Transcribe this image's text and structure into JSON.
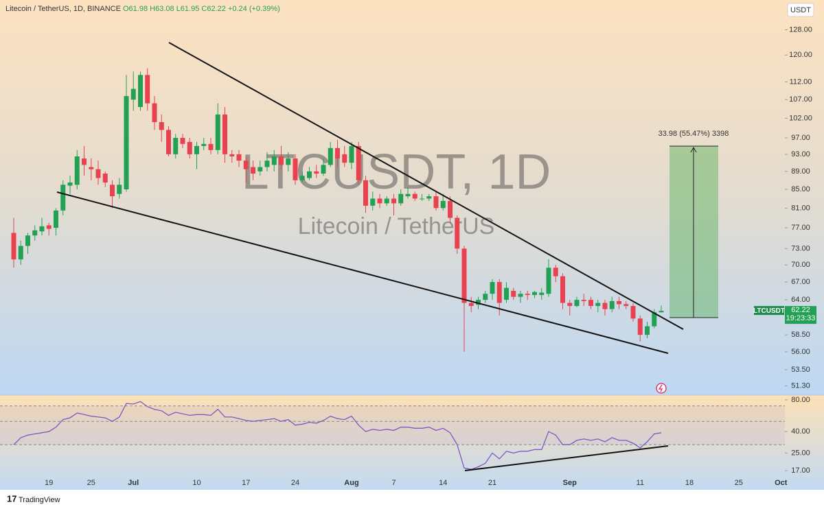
{
  "chart_data": {
    "type": "candlestick",
    "title": "Litecoin / TetherUS, 1D, BINANCE",
    "legend_values": [
      "O61.98",
      "H63.08",
      "L61.95",
      "C62.22",
      "+0.24 (+0.39%)"
    ],
    "watermark": [
      "LTCUSDT, 1D",
      "Litecoin / TetherUS"
    ],
    "currency": "USDT",
    "symbol": "LTCUSDT",
    "last_price": {
      "value": 62.22,
      "label": "62.22"
    },
    "countdown": "19:23:33",
    "measure_label": "33.98 (55.47%) 3398",
    "brand": "TradingView",
    "up_color": "#22a053",
    "down_color": "#e8414f",
    "log": true,
    "ylim": [
      50.2,
      138.2
    ],
    "yticks": [
      {
        "value": 128,
        "label": "128.00"
      },
      {
        "value": 120,
        "label": "120.00"
      },
      {
        "value": 112,
        "label": "112.00"
      },
      {
        "value": 107,
        "label": "107.00"
      },
      {
        "value": 102,
        "label": "102.00"
      },
      {
        "value": 97,
        "label": "97.00"
      },
      {
        "value": 93,
        "label": "93.00"
      },
      {
        "value": 89,
        "label": "89.00"
      },
      {
        "value": 85,
        "label": "85.00"
      },
      {
        "value": 81,
        "label": "81.00"
      },
      {
        "value": 77,
        "label": "77.00"
      },
      {
        "value": 73,
        "label": "73.00"
      },
      {
        "value": 70,
        "label": "70.00"
      },
      {
        "value": 67,
        "label": "67.00"
      },
      {
        "value": 64,
        "label": "64.00"
      },
      {
        "value": 58.5,
        "label": "58.50"
      },
      {
        "value": 56,
        "label": "56.00"
      },
      {
        "value": 53.5,
        "label": "53.50"
      },
      {
        "value": 51.3,
        "label": "51.30"
      }
    ],
    "categories": [
      null,
      null,
      null,
      null,
      null,
      "19",
      null,
      null,
      null,
      null,
      null,
      "25",
      null,
      null,
      null,
      null,
      null,
      "Jul",
      null,
      null,
      null,
      null,
      null,
      null,
      null,
      null,
      "10",
      null,
      null,
      null,
      null,
      null,
      null,
      "17",
      null,
      null,
      null,
      null,
      null,
      null,
      "24",
      null,
      null,
      null,
      null,
      null,
      null,
      null,
      "Aug",
      null,
      null,
      null,
      null,
      null,
      "7",
      null,
      null,
      null,
      null,
      null,
      null,
      "14",
      null,
      null,
      null,
      null,
      null,
      null,
      "21",
      null,
      null,
      null,
      null,
      null,
      null,
      null,
      null,
      null,
      null,
      "Sep",
      null,
      null,
      null,
      null,
      null,
      null,
      null,
      null,
      null,
      "11",
      null,
      null,
      null,
      null,
      null,
      null,
      "18",
      null,
      null,
      null,
      null,
      null,
      null,
      "25",
      null,
      null,
      null,
      null,
      null,
      "Oct"
    ],
    "open": [
      76,
      71,
      73.5,
      75.5,
      76.3,
      77.5,
      77,
      80.5,
      85.8,
      86,
      92,
      90,
      89.5,
      88.5,
      86,
      84,
      85,
      107,
      105,
      114,
      106,
      101,
      99,
      93,
      97,
      96,
      93,
      95,
      95.5,
      94,
      103,
      93,
      93,
      91.5,
      90,
      89,
      90,
      90.5,
      92.5,
      90.5,
      92,
      87,
      87.5,
      89,
      88.5,
      90.5,
      94.5,
      93,
      91,
      95,
      87,
      81.5,
      83,
      82,
      83,
      82,
      83.5,
      84,
      83,
      83,
      83.5,
      81,
      82.5,
      79,
      73,
      63.5,
      63.2,
      64,
      65,
      67,
      64,
      65.5,
      64.5,
      65,
      64.8,
      64.8,
      65,
      69.5,
      68,
      63.5,
      63,
      64,
      64,
      63,
      63.5,
      62.5,
      63.8,
      63.3,
      63,
      61,
      58.5,
      59.8,
      61.98,
      null,
      null,
      null,
      null,
      null,
      null,
      null,
      null,
      null,
      null,
      null,
      null,
      null,
      null,
      null,
      null,
      null
    ],
    "high": [
      79,
      74.5,
      76,
      77.5,
      79,
      78,
      81,
      87,
      88,
      94,
      95,
      92,
      91.5,
      89,
      87,
      87.5,
      114,
      115,
      115,
      116,
      108,
      103,
      100,
      98,
      98,
      97,
      96,
      97,
      97,
      106,
      105,
      94,
      94,
      92.5,
      91.5,
      91.5,
      93.5,
      94,
      95,
      93.5,
      93,
      89,
      90,
      90.5,
      92,
      96,
      96.5,
      95,
      96,
      96,
      88,
      84.5,
      84,
      83.5,
      84,
      85,
      85.5,
      84.5,
      84,
      84,
      84.5,
      84,
      83.5,
      79.5,
      73.5,
      64.5,
      64.5,
      65.5,
      67.5,
      67.5,
      67,
      66,
      65.5,
      65.5,
      65.5,
      66,
      71,
      70,
      68.5,
      64,
      64.5,
      65,
      64.5,
      64,
      64,
      64.5,
      64.5,
      63.8,
      63.5,
      61.5,
      60.5,
      62.5,
      63.08,
      null,
      null,
      null,
      null,
      null,
      null,
      null,
      null,
      null,
      null,
      null,
      null,
      null,
      null,
      null,
      null,
      null
    ],
    "low": [
      69.5,
      70,
      72,
      74.5,
      75.5,
      75.5,
      75.5,
      79.5,
      84,
      85,
      88,
      87,
      86,
      85.5,
      81,
      83,
      84.5,
      104,
      104,
      104,
      99,
      96,
      92.5,
      92,
      94.5,
      92,
      89.5,
      94,
      93,
      93,
      91,
      91,
      90,
      86.5,
      87,
      88,
      89,
      89,
      89.5,
      89,
      86,
      86.5,
      87,
      87.5,
      88,
      90,
      90,
      90,
      89.5,
      86,
      80,
      80.5,
      81,
      81.5,
      79.5,
      81.5,
      83,
      82.5,
      82.5,
      82.5,
      80.5,
      80.5,
      78,
      72,
      56,
      62,
      62.5,
      63.5,
      64,
      61.5,
      63.5,
      64,
      63.5,
      64,
      64.3,
      64,
      64.5,
      67,
      62.5,
      61.5,
      62.8,
      63,
      62.5,
      62,
      61.5,
      62,
      62.5,
      62.5,
      60.5,
      57.5,
      58,
      59.5,
      61.95,
      null,
      null,
      null,
      null,
      null,
      null,
      null,
      null,
      null,
      null,
      null,
      null,
      null,
      null,
      null,
      null,
      null
    ],
    "close": [
      71,
      73.5,
      75.5,
      76.5,
      77.3,
      76.8,
      80.5,
      86,
      86.5,
      92.5,
      90.5,
      89.5,
      87.5,
      86.5,
      83.5,
      86,
      108,
      110,
      114,
      106,
      101,
      99,
      93,
      97,
      95.5,
      93,
      95,
      95.5,
      94,
      103,
      93,
      92.5,
      91.5,
      89.5,
      88.5,
      90,
      91.5,
      92.5,
      90.5,
      92,
      87,
      88,
      89,
      88.5,
      90.5,
      94.5,
      92,
      91,
      95,
      87,
      81.5,
      83,
      82,
      83,
      82,
      84,
      84,
      83,
      83,
      83.5,
      81,
      82.5,
      79,
      73,
      63.5,
      63,
      64,
      65,
      67,
      63.5,
      66,
      64.5,
      65,
      64.8,
      65.3,
      65.2,
      69.5,
      68,
      63.5,
      63,
      64,
      63.8,
      63,
      63.5,
      62.5,
      63.8,
      63.3,
      63,
      61,
      58.5,
      59.8,
      61.98,
      62.22,
      null,
      null,
      null,
      null,
      null,
      null,
      null,
      null,
      null,
      null,
      null,
      null,
      null,
      null,
      null,
      null,
      null
    ],
    "rsi": {
      "color": "#7e57c2",
      "log": true,
      "ylim": [
        15.1,
        87.4
      ],
      "yticks": [
        {
          "value": 80,
          "label": "80.00"
        },
        {
          "value": 40,
          "label": "40.00"
        },
        {
          "value": 25,
          "label": "25.00"
        },
        {
          "value": 17,
          "label": "17.00"
        }
      ],
      "levels": [
        70,
        50,
        30
      ],
      "values": [
        30,
        35,
        37,
        38,
        39,
        40,
        44,
        52,
        54,
        60,
        58,
        56,
        55,
        54,
        50,
        55,
        74,
        73,
        77,
        69,
        65,
        63,
        57,
        61,
        59,
        57,
        58,
        58,
        57,
        65,
        55,
        55,
        53,
        51,
        50,
        51,
        52,
        53,
        50,
        52,
        46,
        47,
        49,
        48,
        51,
        56,
        53,
        52,
        56,
        46,
        40,
        42,
        41,
        42,
        41,
        44,
        44,
        43,
        43,
        44,
        41,
        43,
        39,
        30,
        18,
        17.5,
        18.5,
        20,
        25,
        22,
        26,
        25,
        26,
        26,
        27,
        27,
        40,
        37,
        30,
        30,
        33,
        34,
        33,
        34,
        32,
        35,
        33,
        33,
        31,
        28,
        32,
        38,
        39,
        null,
        null,
        null,
        null,
        null,
        null,
        null,
        null,
        null,
        null,
        null,
        null,
        null,
        null,
        null,
        null,
        null
      ]
    }
  }
}
